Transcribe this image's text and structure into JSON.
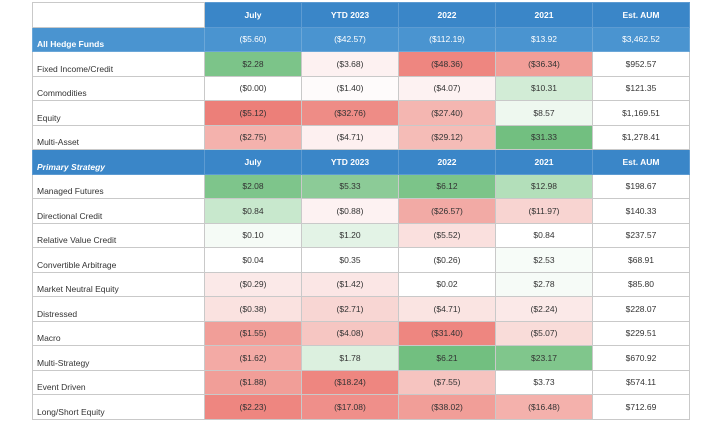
{
  "header": {
    "label": "",
    "cols": [
      "July",
      "YTD 2023",
      "2022",
      "2021",
      "Est. AUM"
    ]
  },
  "all_funds": {
    "label": "All Hedge Funds",
    "values": [
      "($5.60)",
      "($42.57)",
      "($112.19)",
      "$13.92",
      "$3,462.52"
    ]
  },
  "asset_rows": [
    {
      "label": "Fixed Income/Credit",
      "values": [
        "$2.28",
        "($3.68)",
        "($48.36)",
        "($36.34)",
        "$952.57"
      ],
      "colors": [
        "#7cc489",
        "#fdf1f1",
        "#ee8680",
        "#f19e98"
      ]
    },
    {
      "label": "Commodities",
      "values": [
        "($0.00)",
        "($1.40)",
        "($4.07)",
        "$10.31",
        "$121.35"
      ],
      "colors": [
        "#ffffff",
        "#fefbfb",
        "#fdf2f2",
        "#d2ecd6"
      ]
    },
    {
      "label": "Equity",
      "values": [
        "($5.12)",
        "($32.76)",
        "($27.40)",
        "$8.57",
        "$1,169.51"
      ],
      "colors": [
        "#ec7f79",
        "#ee8c86",
        "#f4b6b1",
        "#eef8ef"
      ]
    },
    {
      "label": "Multi-Asset",
      "values": [
        "($2.75)",
        "($4.71)",
        "($29.12)",
        "$31.33",
        "$1,278.41"
      ],
      "colors": [
        "#f4b2ad",
        "#fdf0f0",
        "#f5bcb7",
        "#72bf80"
      ]
    }
  ],
  "strategy_header": {
    "label": "Primary Strategy",
    "cols": [
      "July",
      "YTD 2023",
      "2022",
      "2021",
      "Est. AUM"
    ]
  },
  "strategy_rows": [
    {
      "label": "Managed Futures",
      "values": [
        "$2.08",
        "$5.33",
        "$6.12",
        "$12.98",
        "$198.67"
      ],
      "colors": [
        "#7ec58b",
        "#8ccb97",
        "#7cc489",
        "#b3dfba"
      ]
    },
    {
      "label": "Directional Credit",
      "values": [
        "$0.84",
        "($0.88)",
        "($26.57)",
        "($11.97)",
        "$140.33"
      ],
      "colors": [
        "#c8e8cd",
        "#fdf2f2",
        "#f2aaa5",
        "#f8d4d1"
      ]
    },
    {
      "label": "Relative Value Credit",
      "values": [
        "$0.10",
        "$1.20",
        "($5.52)",
        "$0.84",
        "$237.57"
      ],
      "colors": [
        "#f5fbf6",
        "#e3f3e6",
        "#fae0de",
        "#ffffff"
      ]
    },
    {
      "label": "Convertible Arbitrage",
      "values": [
        "$0.04",
        "$0.35",
        "($0.26)",
        "$2.53",
        "$68.91"
      ],
      "colors": [
        "#ffffff",
        "#ffffff",
        "#ffffff",
        "#f7fcf8"
      ]
    },
    {
      "label": "Market Neutral Equity",
      "values": [
        "($0.29)",
        "($1.42)",
        "$0.02",
        "$2.78",
        "$85.80"
      ],
      "colors": [
        "#fbe9e8",
        "#fbe6e5",
        "#ffffff",
        "#f6fbf7"
      ]
    },
    {
      "label": "Distressed",
      "values": [
        "($0.38)",
        "($2.71)",
        "($4.71)",
        "($2.24)",
        "$228.07"
      ],
      "colors": [
        "#fae2e0",
        "#f8d6d3",
        "#fae4e2",
        "#fbe9e8"
      ]
    },
    {
      "label": "Macro",
      "values": [
        "($1.55)",
        "($4.08)",
        "($31.40)",
        "($5.07)",
        "$229.51"
      ],
      "colors": [
        "#f19e98",
        "#f6c6c2",
        "#ee8680",
        "#f9dcd9"
      ]
    },
    {
      "label": "Multi-Strategy",
      "values": [
        "($1.62)",
        "$1.78",
        "$6.21",
        "$23.17",
        "$670.92"
      ],
      "colors": [
        "#f3aaa5",
        "#dcf0df",
        "#72bf80",
        "#80c68c"
      ]
    },
    {
      "label": "Event Driven",
      "values": [
        "($1.88)",
        "($18.24)",
        "($7.55)",
        "$3.73",
        "$574.11"
      ],
      "colors": [
        "#f19e98",
        "#ee8680",
        "#f6c4c0",
        "#ffffff"
      ]
    },
    {
      "label": "Long/Short Equity",
      "values": [
        "($2.23)",
        "($17.08)",
        "($38.02)",
        "($16.48)",
        "$712.69"
      ],
      "colors": [
        "#ee8680",
        "#ef8f8a",
        "#f19e98",
        "#f4b1ac"
      ]
    }
  ]
}
